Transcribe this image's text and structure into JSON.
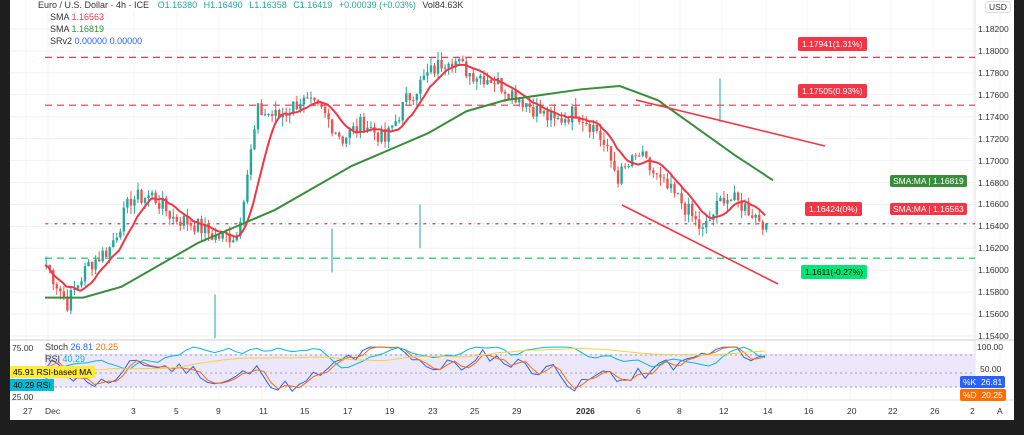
{
  "header": {
    "symbol": "Euro / U.S. Dollar · 4h · ICE",
    "open": "O1.16380",
    "high": "H1.16490",
    "low": "L1.16358",
    "close": "C1.16419",
    "change": "+0.00039 (+0.03%)",
    "volume": "Vol84.63K"
  },
  "legend": [
    {
      "name": "SMA",
      "value": "1.16563"
    },
    {
      "name": "SMA",
      "value": "1.16819"
    },
    {
      "name": "SRv2",
      "value": "0.00000  0.00000"
    }
  ],
  "currency": "USD",
  "colors": {
    "up": "#26a69a",
    "down": "#ef5350",
    "sma_fast": "#f23645",
    "sma_slow": "#388e3c",
    "level_red": "#f23645",
    "level_green": "#00c853"
  },
  "level_labels": [
    "1.17941(1.31%)",
    "1.17505(0.93%)",
    "1.16424(0%)",
    "1.1611(-0.27%)"
  ],
  "ma_tags": [
    {
      "name": "SMA:MA",
      "value": "1.16819"
    },
    {
      "name": "SMA:MA",
      "value": "1.16563"
    }
  ],
  "oscillator": {
    "stoch_label": "Stoch",
    "k": "26.81",
    "d": "20.25",
    "rsi_label": "RSI",
    "rsi_val": "40.29",
    "rsi_ma_label": "RSI-based MA",
    "rsi_ma": "45.91",
    "k_tag": "%K",
    "d_tag": "%D",
    "left_ticks": [
      "75.00",
      "25.00"
    ],
    "right_ticks": [
      "100.00",
      "50.00"
    ]
  },
  "chart_data": {
    "type": "line",
    "title": "Euro / U.S. Dollar · 4h",
    "price_ticks": [
      "1.18200",
      "1.18000",
      "1.17800",
      "1.17600",
      "1.17400",
      "1.17200",
      "1.17000",
      "1.16800",
      "1.16600",
      "1.16400",
      "1.16200",
      "1.16000",
      "1.15800",
      "1.15600",
      "1.15400"
    ],
    "ylim": [
      1.154,
      1.182
    ],
    "x_ticks": [
      "27",
      "Dec",
      "3",
      "5",
      "9",
      "11",
      "15",
      "17",
      "19",
      "23",
      "25",
      "29",
      "2026",
      "6",
      "8",
      "12",
      "14",
      "16",
      "20",
      "22",
      "26",
      "2",
      "A"
    ],
    "close_anchors": {
      "x": [
        "Nov27",
        "Nov28",
        "Dec1",
        "Dec2",
        "Dec3",
        "Dec4",
        "Dec5",
        "Dec8",
        "Dec9",
        "Dec10",
        "Dec11",
        "Dec12",
        "Dec15",
        "Dec16",
        "Dec17",
        "Dec18",
        "Dec19",
        "Dec22",
        "Dec23",
        "Dec24",
        "Dec25",
        "Dec26",
        "Dec29",
        "Dec30",
        "Dec31",
        "Jan1",
        "Jan2",
        "Jan5",
        "Jan6",
        "Jan7",
        "Jan8",
        "Jan9",
        "Jan12",
        "Jan13",
        "Jan14"
      ],
      "y": [
        1.1605,
        1.157,
        1.1605,
        1.162,
        1.1665,
        1.1668,
        1.1648,
        1.1642,
        1.163,
        1.1632,
        1.1745,
        1.174,
        1.1755,
        1.1745,
        1.172,
        1.1735,
        1.1718,
        1.1755,
        1.1778,
        1.1795,
        1.178,
        1.1775,
        1.1762,
        1.1748,
        1.1735,
        1.1745,
        1.1728,
        1.1685,
        1.1705,
        1.168,
        1.1662,
        1.1635,
        1.1668,
        1.1658,
        1.1642
      ]
    },
    "sma_slow": [
      1.1575,
      1.1575,
      1.1585,
      1.1605,
      1.1625,
      1.164,
      1.1655,
      1.1675,
      1.1695,
      1.171,
      1.1725,
      1.1745,
      1.1755,
      1.176,
      1.1765,
      1.1768,
      1.1755,
      1.173,
      1.1705,
      1.1682
    ],
    "levels": [
      1.17941,
      1.17505,
      1.16424,
      1.1611
    ],
    "oscillator_range": [
      0,
      100
    ]
  }
}
